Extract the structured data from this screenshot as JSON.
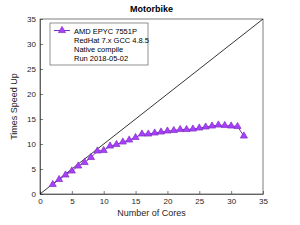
{
  "chart_data": {
    "type": "line",
    "title": "Motorbike",
    "x_label": "Number of Cores",
    "y_label": "Times Speed Up",
    "xlim": [
      0,
      35
    ],
    "xticks": [
      0,
      5,
      10,
      15,
      20,
      25,
      30,
      35
    ],
    "ylim": [
      0,
      35
    ],
    "yticks": [
      0,
      5,
      10,
      15,
      20,
      25,
      30,
      35
    ],
    "grid": false,
    "legend": "upper-left",
    "annotations": [
      "RedHat 7.x GCC 4.8.5",
      "Native compile",
      "Run 2018-05-02"
    ],
    "series": [
      {
        "color": "#000000",
        "line_style": "solid",
        "x": [
          0,
          35
        ],
        "values": [
          0,
          35
        ]
      },
      {
        "name": "AMD EPYC 7551P",
        "color": "#7e2fbf",
        "marker": "triangle",
        "line_style": "solid",
        "x": [
          2,
          3,
          4,
          5,
          6,
          7,
          8,
          9,
          10,
          11,
          12,
          13,
          14,
          15,
          16,
          17,
          18,
          19,
          20,
          21,
          22,
          23,
          24,
          25,
          26,
          27,
          28,
          29,
          30,
          31,
          32
        ],
        "values": [
          1.9,
          2.9,
          3.8,
          4.6,
          5.6,
          6.3,
          7.3,
          8.6,
          8.7,
          9.6,
          9.9,
          10.4,
          10.8,
          11.3,
          12.0,
          12.0,
          12.2,
          12.4,
          12.6,
          12.7,
          12.9,
          12.9,
          13.0,
          13.2,
          13.4,
          13.6,
          13.8,
          13.7,
          13.6,
          13.5,
          11.6
        ]
      }
    ]
  }
}
